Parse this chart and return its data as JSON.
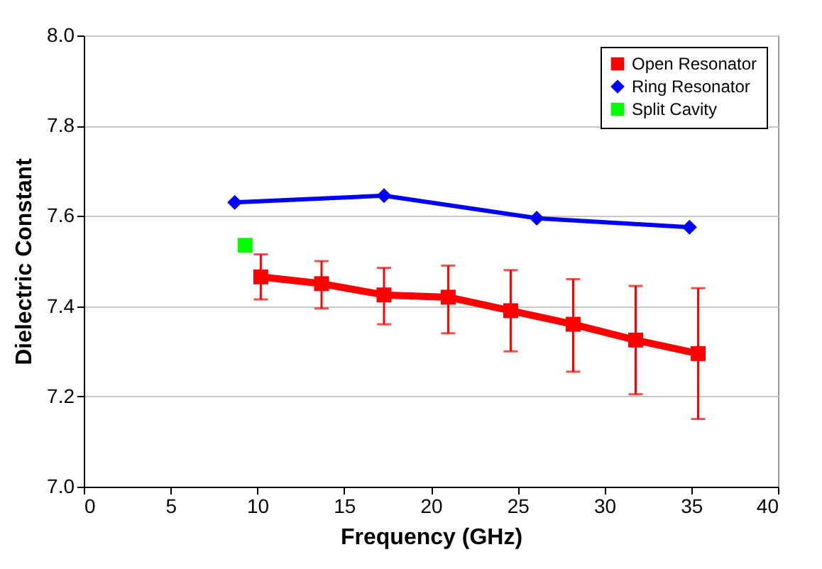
{
  "chart_data": {
    "type": "line",
    "xlabel": "Frequency (GHz)",
    "ylabel": "Dielectric Constant",
    "xlim": [
      0,
      40
    ],
    "xticks": [
      0,
      5,
      10,
      15,
      20,
      25,
      30,
      35,
      40
    ],
    "ylim": [
      7.0,
      8.0
    ],
    "yticks": [
      {
        "value": 7,
        "label": "7.0"
      },
      {
        "value": 7.2,
        "label": "7.2"
      },
      {
        "value": 7.4,
        "label": "7.4"
      },
      {
        "value": 7.6,
        "label": "7.6"
      },
      {
        "value": 7.8,
        "label": "7.8"
      },
      {
        "value": 8,
        "label": "8.0"
      }
    ],
    "grid": "y",
    "legend": "top right",
    "series": [
      {
        "name": "Open Resonator",
        "type": "line",
        "marker": "square",
        "color": "#ff0000",
        "x": [
          10.2,
          13.7,
          17.3,
          21.0,
          24.6,
          28.2,
          31.8,
          35.4
        ],
        "values": [
          7.465,
          7.45,
          7.425,
          7.42,
          7.39,
          7.36,
          7.325,
          7.295
        ],
        "errors": [
          [
            7.415,
            7.515
          ],
          [
            7.395,
            7.5
          ],
          [
            7.36,
            7.485
          ],
          [
            7.34,
            7.49
          ],
          [
            7.3,
            7.48
          ],
          [
            7.255,
            7.46
          ],
          [
            7.205,
            7.445
          ],
          [
            7.15,
            7.44
          ]
        ]
      },
      {
        "name": "Ring Resonator",
        "type": "line",
        "marker": "diamond",
        "color": "#0000ff",
        "x": [
          8.7,
          17.3,
          26.1,
          34.9
        ],
        "values": [
          7.63,
          7.645,
          7.595,
          7.575
        ]
      },
      {
        "name": "Split Cavity",
        "type": "scatter",
        "marker": "square",
        "color": "#00ff00",
        "x": [
          9.3
        ],
        "values": [
          7.535
        ]
      }
    ]
  }
}
